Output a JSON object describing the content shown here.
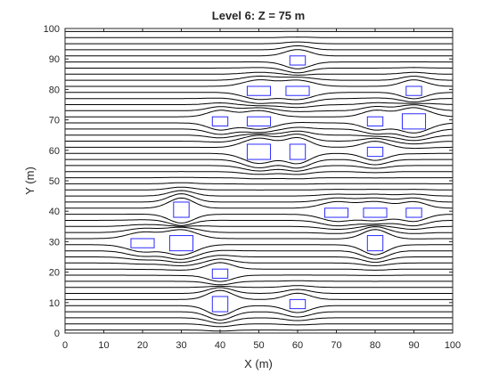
{
  "chart_data": {
    "type": "line",
    "title": "Level 6: Z = 75 m",
    "xlabel": "X (m)",
    "ylabel": "Y (m)",
    "xlim": [
      0,
      100
    ],
    "ylim": [
      0,
      100
    ],
    "xticks": [
      0,
      10,
      20,
      30,
      40,
      50,
      60,
      70,
      80,
      90,
      100
    ],
    "yticks": [
      0,
      10,
      20,
      30,
      40,
      50,
      60,
      70,
      80,
      90,
      100
    ],
    "grid": false,
    "streamline_color": "#000000",
    "obstacle_color": "#2b2bff",
    "streamline_start_y": [
      1,
      3,
      5,
      7,
      9,
      11,
      13,
      15,
      17,
      19,
      21,
      23,
      25,
      27,
      29,
      31,
      33,
      35,
      37,
      39,
      41,
      43,
      45,
      47,
      49,
      51,
      53,
      55,
      57,
      59,
      61,
      63,
      65,
      67,
      69,
      71,
      73,
      75,
      77,
      79,
      81,
      83,
      85,
      87,
      89,
      91,
      93,
      95,
      97,
      99
    ],
    "obstacles": [
      {
        "x": 58,
        "y": 88,
        "w": 4,
        "h": 3
      },
      {
        "x": 47,
        "y": 78,
        "w": 6,
        "h": 3
      },
      {
        "x": 57,
        "y": 78,
        "w": 6,
        "h": 3
      },
      {
        "x": 88,
        "y": 78,
        "w": 4,
        "h": 3
      },
      {
        "x": 38,
        "y": 68,
        "w": 4,
        "h": 3
      },
      {
        "x": 47,
        "y": 68,
        "w": 6,
        "h": 3
      },
      {
        "x": 78,
        "y": 68,
        "w": 4,
        "h": 3
      },
      {
        "x": 87,
        "y": 67,
        "w": 6,
        "h": 5
      },
      {
        "x": 47,
        "y": 57,
        "w": 6,
        "h": 5
      },
      {
        "x": 58,
        "y": 57,
        "w": 4,
        "h": 5
      },
      {
        "x": 78,
        "y": 58,
        "w": 4,
        "h": 3
      },
      {
        "x": 28,
        "y": 38,
        "w": 4,
        "h": 5
      },
      {
        "x": 67,
        "y": 38,
        "w": 6,
        "h": 3
      },
      {
        "x": 77,
        "y": 38,
        "w": 6,
        "h": 3
      },
      {
        "x": 88,
        "y": 38,
        "w": 4,
        "h": 3
      },
      {
        "x": 17,
        "y": 28,
        "w": 6,
        "h": 3
      },
      {
        "x": 27,
        "y": 27,
        "w": 6,
        "h": 5
      },
      {
        "x": 78,
        "y": 27,
        "w": 4,
        "h": 5
      },
      {
        "x": 38,
        "y": 18,
        "w": 4,
        "h": 3
      },
      {
        "x": 38,
        "y": 7,
        "w": 4,
        "h": 5
      },
      {
        "x": 58,
        "y": 8,
        "w": 4,
        "h": 3
      }
    ]
  }
}
